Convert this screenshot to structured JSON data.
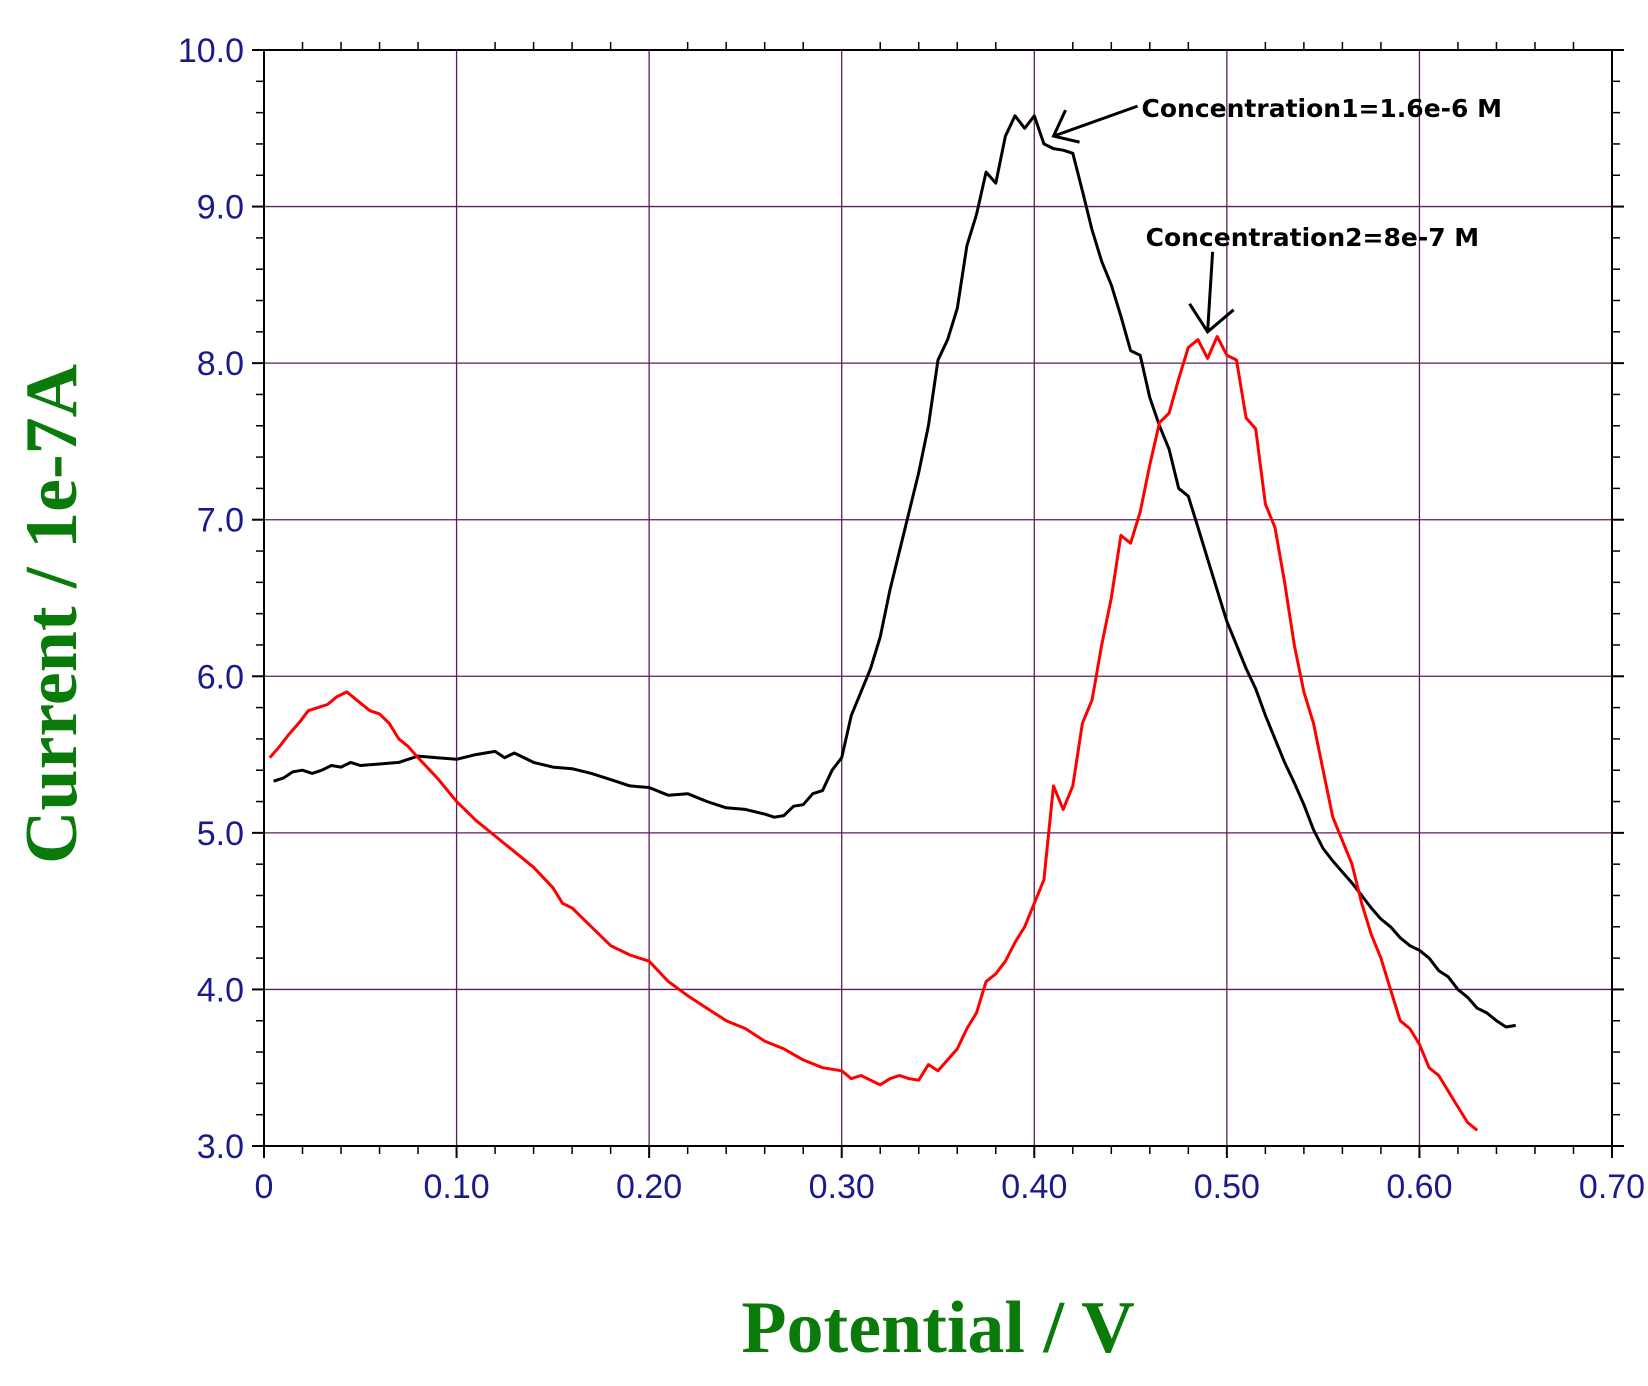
{
  "chart_data": {
    "type": "line",
    "title": "",
    "xlabel": "Potential / V",
    "ylabel": "Current / 1e-7A",
    "xlim": [
      0,
      0.7
    ],
    "ylim": [
      3.0,
      10.0
    ],
    "x_ticks": [
      "0",
      "0.10",
      "0.20",
      "0.30",
      "0.40",
      "0.50",
      "0.60",
      "0.70"
    ],
    "y_ticks": [
      "3.0",
      "4.0",
      "5.0",
      "6.0",
      "7.0",
      "8.0",
      "9.0",
      "10.0"
    ],
    "grid": true,
    "colors": {
      "grid": "#5a1f5a",
      "axis": "#000000",
      "tick_label": "#1a1a8c",
      "axis_title": "#0a7a0a"
    },
    "annotations": [
      {
        "text": "Concentration1=1.6e-6 M",
        "target_series": "black",
        "target_x": 0.41,
        "target_y": 9.45
      },
      {
        "text": "Concentration2=8e-7 M",
        "target_series": "red",
        "target_x": 0.49,
        "target_y": 8.2
      }
    ],
    "series": [
      {
        "color": "#000000",
        "points": [
          [
            0.005,
            5.33
          ],
          [
            0.01,
            5.35
          ],
          [
            0.015,
            5.39
          ],
          [
            0.02,
            5.4
          ],
          [
            0.025,
            5.38
          ],
          [
            0.03,
            5.4
          ],
          [
            0.035,
            5.43
          ],
          [
            0.04,
            5.42
          ],
          [
            0.045,
            5.45
          ],
          [
            0.05,
            5.43
          ],
          [
            0.06,
            5.44
          ],
          [
            0.07,
            5.45
          ],
          [
            0.08,
            5.49
          ],
          [
            0.09,
            5.48
          ],
          [
            0.1,
            5.47
          ],
          [
            0.11,
            5.5
          ],
          [
            0.12,
            5.52
          ],
          [
            0.125,
            5.48
          ],
          [
            0.13,
            5.51
          ],
          [
            0.14,
            5.45
          ],
          [
            0.15,
            5.42
          ],
          [
            0.16,
            5.41
          ],
          [
            0.17,
            5.38
          ],
          [
            0.18,
            5.34
          ],
          [
            0.19,
            5.3
          ],
          [
            0.2,
            5.29
          ],
          [
            0.21,
            5.24
          ],
          [
            0.22,
            5.25
          ],
          [
            0.23,
            5.2
          ],
          [
            0.24,
            5.16
          ],
          [
            0.25,
            5.15
          ],
          [
            0.26,
            5.12
          ],
          [
            0.265,
            5.1
          ],
          [
            0.27,
            5.11
          ],
          [
            0.275,
            5.17
          ],
          [
            0.28,
            5.18
          ],
          [
            0.285,
            5.25
          ],
          [
            0.29,
            5.27
          ],
          [
            0.295,
            5.4
          ],
          [
            0.3,
            5.48
          ],
          [
            0.305,
            5.75
          ],
          [
            0.31,
            5.9
          ],
          [
            0.315,
            6.05
          ],
          [
            0.32,
            6.25
          ],
          [
            0.325,
            6.55
          ],
          [
            0.33,
            6.8
          ],
          [
            0.335,
            7.05
          ],
          [
            0.34,
            7.3
          ],
          [
            0.345,
            7.6
          ],
          [
            0.35,
            8.02
          ],
          [
            0.355,
            8.15
          ],
          [
            0.36,
            8.35
          ],
          [
            0.365,
            8.75
          ],
          [
            0.37,
            8.95
          ],
          [
            0.375,
            9.22
          ],
          [
            0.38,
            9.15
          ],
          [
            0.385,
            9.45
          ],
          [
            0.39,
            9.58
          ],
          [
            0.395,
            9.5
          ],
          [
            0.4,
            9.58
          ],
          [
            0.405,
            9.4
          ],
          [
            0.41,
            9.37
          ],
          [
            0.415,
            9.36
          ],
          [
            0.42,
            9.34
          ],
          [
            0.425,
            9.1
          ],
          [
            0.43,
            8.85
          ],
          [
            0.435,
            8.65
          ],
          [
            0.44,
            8.5
          ],
          [
            0.445,
            8.3
          ],
          [
            0.45,
            8.08
          ],
          [
            0.455,
            8.05
          ],
          [
            0.46,
            7.78
          ],
          [
            0.465,
            7.6
          ],
          [
            0.47,
            7.45
          ],
          [
            0.475,
            7.2
          ],
          [
            0.48,
            7.15
          ],
          [
            0.485,
            6.95
          ],
          [
            0.49,
            6.75
          ],
          [
            0.495,
            6.55
          ],
          [
            0.5,
            6.35
          ],
          [
            0.505,
            6.2
          ],
          [
            0.51,
            6.05
          ],
          [
            0.515,
            5.92
          ],
          [
            0.52,
            5.75
          ],
          [
            0.525,
            5.6
          ],
          [
            0.53,
            5.45
          ],
          [
            0.535,
            5.32
          ],
          [
            0.54,
            5.18
          ],
          [
            0.545,
            5.02
          ],
          [
            0.55,
            4.9
          ],
          [
            0.555,
            4.82
          ],
          [
            0.56,
            4.75
          ],
          [
            0.565,
            4.68
          ],
          [
            0.57,
            4.6
          ],
          [
            0.575,
            4.52
          ],
          [
            0.58,
            4.45
          ],
          [
            0.585,
            4.4
          ],
          [
            0.59,
            4.33
          ],
          [
            0.595,
            4.28
          ],
          [
            0.6,
            4.25
          ],
          [
            0.605,
            4.2
          ],
          [
            0.61,
            4.12
          ],
          [
            0.615,
            4.08
          ],
          [
            0.62,
            4.0
          ],
          [
            0.625,
            3.95
          ],
          [
            0.63,
            3.88
          ],
          [
            0.635,
            3.85
          ],
          [
            0.64,
            3.8
          ],
          [
            0.645,
            3.76
          ],
          [
            0.65,
            3.77
          ]
        ]
      },
      {
        "color": "#ff0000",
        "points": [
          [
            0.003,
            5.48
          ],
          [
            0.008,
            5.55
          ],
          [
            0.013,
            5.63
          ],
          [
            0.018,
            5.7
          ],
          [
            0.023,
            5.78
          ],
          [
            0.028,
            5.8
          ],
          [
            0.033,
            5.82
          ],
          [
            0.038,
            5.87
          ],
          [
            0.043,
            5.9
          ],
          [
            0.048,
            5.85
          ],
          [
            0.055,
            5.78
          ],
          [
            0.06,
            5.76
          ],
          [
            0.065,
            5.7
          ],
          [
            0.07,
            5.6
          ],
          [
            0.075,
            5.55
          ],
          [
            0.08,
            5.48
          ],
          [
            0.09,
            5.35
          ],
          [
            0.1,
            5.2
          ],
          [
            0.11,
            5.08
          ],
          [
            0.12,
            4.98
          ],
          [
            0.13,
            4.88
          ],
          [
            0.14,
            4.78
          ],
          [
            0.15,
            4.65
          ],
          [
            0.155,
            4.55
          ],
          [
            0.16,
            4.52
          ],
          [
            0.17,
            4.4
          ],
          [
            0.18,
            4.28
          ],
          [
            0.19,
            4.22
          ],
          [
            0.2,
            4.18
          ],
          [
            0.21,
            4.05
          ],
          [
            0.22,
            3.96
          ],
          [
            0.23,
            3.88
          ],
          [
            0.24,
            3.8
          ],
          [
            0.25,
            3.75
          ],
          [
            0.26,
            3.67
          ],
          [
            0.27,
            3.62
          ],
          [
            0.28,
            3.55
          ],
          [
            0.29,
            3.5
          ],
          [
            0.3,
            3.48
          ],
          [
            0.305,
            3.43
          ],
          [
            0.31,
            3.45
          ],
          [
            0.315,
            3.42
          ],
          [
            0.32,
            3.39
          ],
          [
            0.325,
            3.43
          ],
          [
            0.33,
            3.45
          ],
          [
            0.335,
            3.43
          ],
          [
            0.34,
            3.42
          ],
          [
            0.345,
            3.52
          ],
          [
            0.35,
            3.48
          ],
          [
            0.355,
            3.55
          ],
          [
            0.36,
            3.62
          ],
          [
            0.365,
            3.75
          ],
          [
            0.37,
            3.85
          ],
          [
            0.375,
            4.05
          ],
          [
            0.38,
            4.1
          ],
          [
            0.385,
            4.18
          ],
          [
            0.39,
            4.3
          ],
          [
            0.395,
            4.4
          ],
          [
            0.4,
            4.55
          ],
          [
            0.405,
            4.7
          ],
          [
            0.41,
            5.3
          ],
          [
            0.415,
            5.15
          ],
          [
            0.42,
            5.3
          ],
          [
            0.425,
            5.7
          ],
          [
            0.43,
            5.85
          ],
          [
            0.435,
            6.2
          ],
          [
            0.44,
            6.5
          ],
          [
            0.445,
            6.9
          ],
          [
            0.45,
            6.85
          ],
          [
            0.455,
            7.05
          ],
          [
            0.46,
            7.35
          ],
          [
            0.465,
            7.62
          ],
          [
            0.47,
            7.68
          ],
          [
            0.475,
            7.9
          ],
          [
            0.48,
            8.1
          ],
          [
            0.485,
            8.15
          ],
          [
            0.49,
            8.03
          ],
          [
            0.495,
            8.17
          ],
          [
            0.5,
            8.05
          ],
          [
            0.505,
            8.02
          ],
          [
            0.51,
            7.65
          ],
          [
            0.515,
            7.58
          ],
          [
            0.52,
            7.1
          ],
          [
            0.525,
            6.95
          ],
          [
            0.53,
            6.6
          ],
          [
            0.535,
            6.2
          ],
          [
            0.54,
            5.9
          ],
          [
            0.545,
            5.7
          ],
          [
            0.55,
            5.4
          ],
          [
            0.555,
            5.1
          ],
          [
            0.56,
            4.95
          ],
          [
            0.565,
            4.8
          ],
          [
            0.57,
            4.55
          ],
          [
            0.575,
            4.35
          ],
          [
            0.58,
            4.2
          ],
          [
            0.585,
            4.0
          ],
          [
            0.59,
            3.8
          ],
          [
            0.595,
            3.75
          ],
          [
            0.6,
            3.65
          ],
          [
            0.605,
            3.5
          ],
          [
            0.61,
            3.45
          ],
          [
            0.615,
            3.35
          ],
          [
            0.62,
            3.25
          ],
          [
            0.625,
            3.15
          ],
          [
            0.63,
            3.1
          ]
        ]
      }
    ]
  }
}
